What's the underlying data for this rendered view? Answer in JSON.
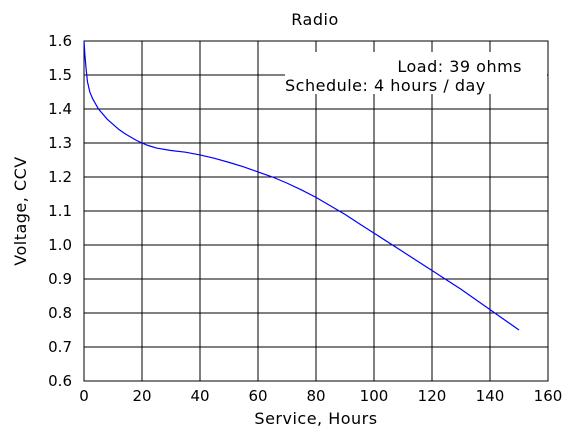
{
  "chart_data": {
    "type": "line",
    "title": "Radio",
    "xlabel": "Service, Hours",
    "ylabel": "Voltage, CCV",
    "xlim": [
      0,
      160
    ],
    "ylim": [
      0.6,
      1.6
    ],
    "xticks": [
      0,
      20,
      40,
      60,
      80,
      100,
      120,
      140,
      160
    ],
    "yticks": [
      0.6,
      0.7,
      0.8,
      0.9,
      1.0,
      1.1,
      1.2,
      1.3,
      1.4,
      1.5,
      1.6
    ],
    "grid": true,
    "annotations": {
      "load": "Load: 39 ohms",
      "schedule": "Schedule: 4 hours / day"
    },
    "series_color": "#0000ff",
    "series": [
      {
        "x": [
          0,
          0.3,
          0.7,
          1.2,
          2,
          3,
          4,
          5,
          6,
          8,
          10,
          12,
          14,
          16,
          18,
          20,
          22,
          25,
          30,
          35,
          40,
          45,
          50,
          55,
          60,
          65,
          70,
          75,
          80,
          85,
          90,
          95,
          100,
          110,
          120,
          130,
          140,
          150
        ],
        "y": [
          1.6,
          1.56,
          1.52,
          1.48,
          1.45,
          1.43,
          1.415,
          1.4,
          1.39,
          1.37,
          1.355,
          1.34,
          1.328,
          1.318,
          1.308,
          1.3,
          1.293,
          1.285,
          1.278,
          1.273,
          1.265,
          1.255,
          1.243,
          1.23,
          1.215,
          1.2,
          1.182,
          1.162,
          1.14,
          1.115,
          1.09,
          1.062,
          1.035,
          0.98,
          0.925,
          0.87,
          0.81,
          0.75
        ]
      }
    ]
  }
}
